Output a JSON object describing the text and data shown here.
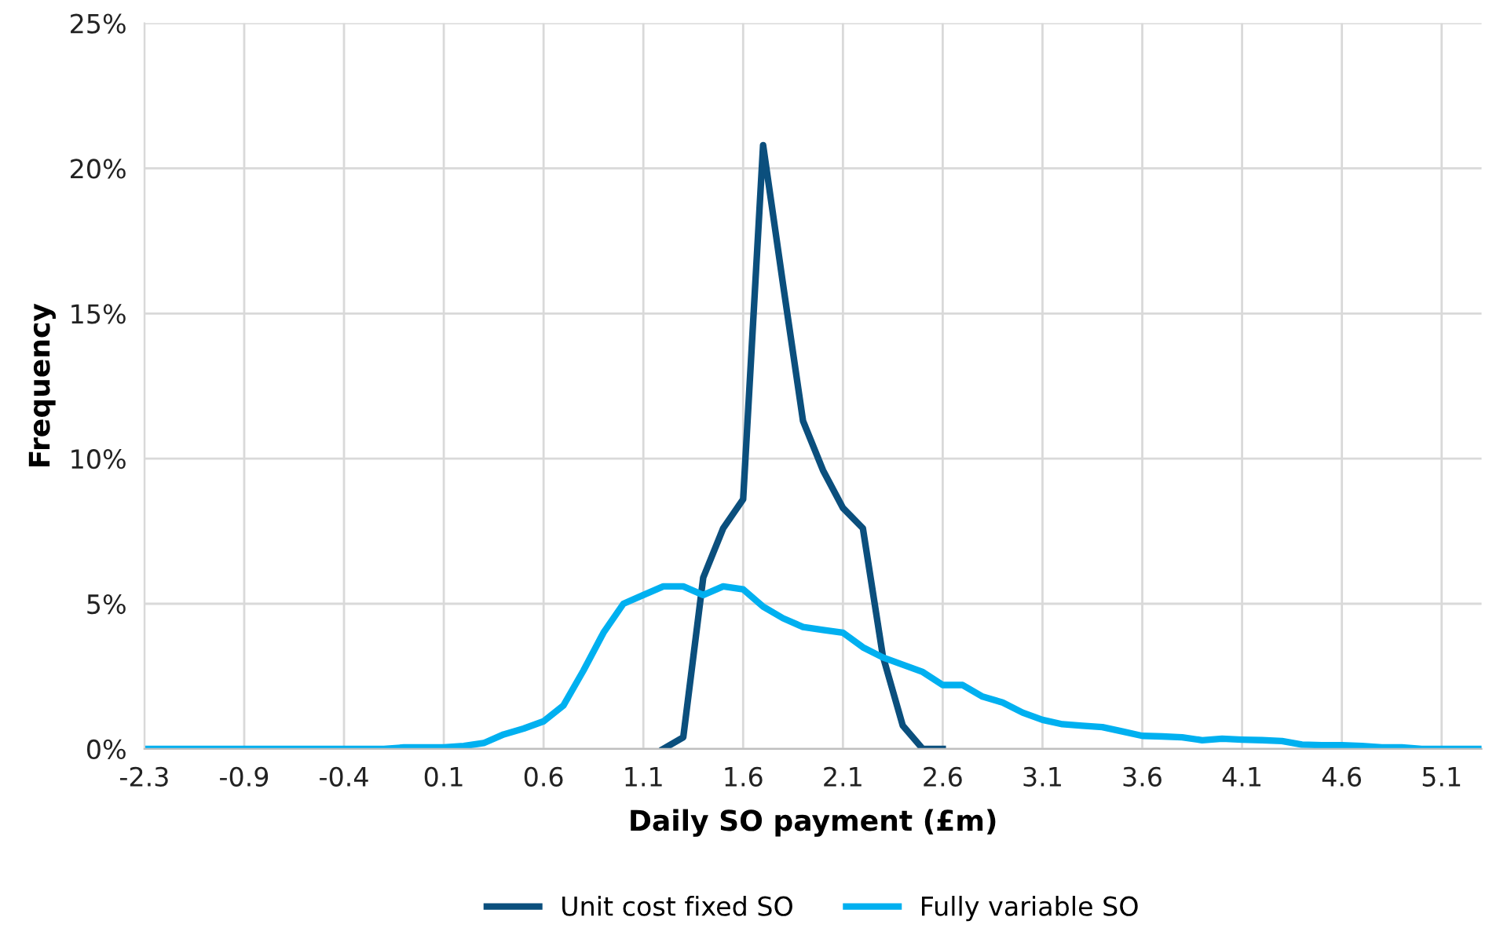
{
  "chart_data": {
    "type": "line",
    "xlabel": "Daily SO payment (£m)",
    "ylabel": "Frequency",
    "categories": [
      "-2.3",
      null,
      null,
      null,
      null,
      "-0.9",
      null,
      null,
      null,
      null,
      "-0.4",
      null,
      null,
      null,
      null,
      "0.1",
      null,
      null,
      null,
      null,
      "0.6",
      null,
      null,
      null,
      null,
      "1.1",
      null,
      null,
      null,
      null,
      "1.6",
      null,
      null,
      null,
      null,
      "2.1",
      null,
      null,
      null,
      null,
      "2.6",
      null,
      null,
      null,
      null,
      "3.1",
      null,
      null,
      null,
      null,
      "3.6",
      null,
      null,
      null,
      null,
      "4.1",
      null,
      null,
      null,
      null,
      "4.6",
      null,
      null,
      null,
      null,
      "5.1",
      null,
      null
    ],
    "series": [
      {
        "name": "Unit cost fixed SO",
        "color": "#0b4f7d",
        "values": [
          null,
          null,
          null,
          null,
          null,
          null,
          null,
          null,
          null,
          null,
          null,
          null,
          null,
          null,
          null,
          null,
          null,
          null,
          null,
          null,
          null,
          null,
          null,
          null,
          null,
          null,
          0,
          0.4,
          5.9,
          7.6,
          8.6,
          20.8,
          16.0,
          11.3,
          9.6,
          8.3,
          7.6,
          3.2,
          0.8,
          0,
          0,
          null,
          null,
          null,
          null,
          null,
          null,
          null,
          null,
          null,
          null,
          null,
          null,
          null,
          null,
          null,
          null,
          null,
          null,
          null,
          null,
          null,
          null,
          null,
          null,
          null,
          null,
          null
        ]
      },
      {
        "name": "Fully variable SO",
        "color": "#00b0f0",
        "values": [
          0,
          0,
          0,
          0,
          0,
          0,
          0,
          0,
          0,
          0,
          0,
          0,
          0,
          0.05,
          0.05,
          0.05,
          0.1,
          0.2,
          0.5,
          0.7,
          0.95,
          1.5,
          2.7,
          4.0,
          5.0,
          5.3,
          5.6,
          5.6,
          5.3,
          5.6,
          5.5,
          4.9,
          4.5,
          4.2,
          4.1,
          4.0,
          3.5,
          3.15,
          2.9,
          2.65,
          2.2,
          2.2,
          1.8,
          1.6,
          1.25,
          1.0,
          0.85,
          0.8,
          0.75,
          0.6,
          0.45,
          0.43,
          0.4,
          0.3,
          0.35,
          0.32,
          0.3,
          0.27,
          0.15,
          0.13,
          0.13,
          0.1,
          0.05,
          0.05,
          0,
          0,
          0,
          0
        ]
      }
    ],
    "ylim": [
      0,
      25
    ],
    "yticks": [
      {
        "value": 0,
        "label": "0%"
      },
      {
        "value": 5,
        "label": "5%"
      },
      {
        "value": 10,
        "label": "10%"
      },
      {
        "value": 15,
        "label": "15%"
      },
      {
        "value": 20,
        "label": "20%"
      },
      {
        "value": 25,
        "label": "25%"
      }
    ],
    "grid": true,
    "legend": "bottom",
    "marker": "none",
    "line_style": "solid"
  }
}
